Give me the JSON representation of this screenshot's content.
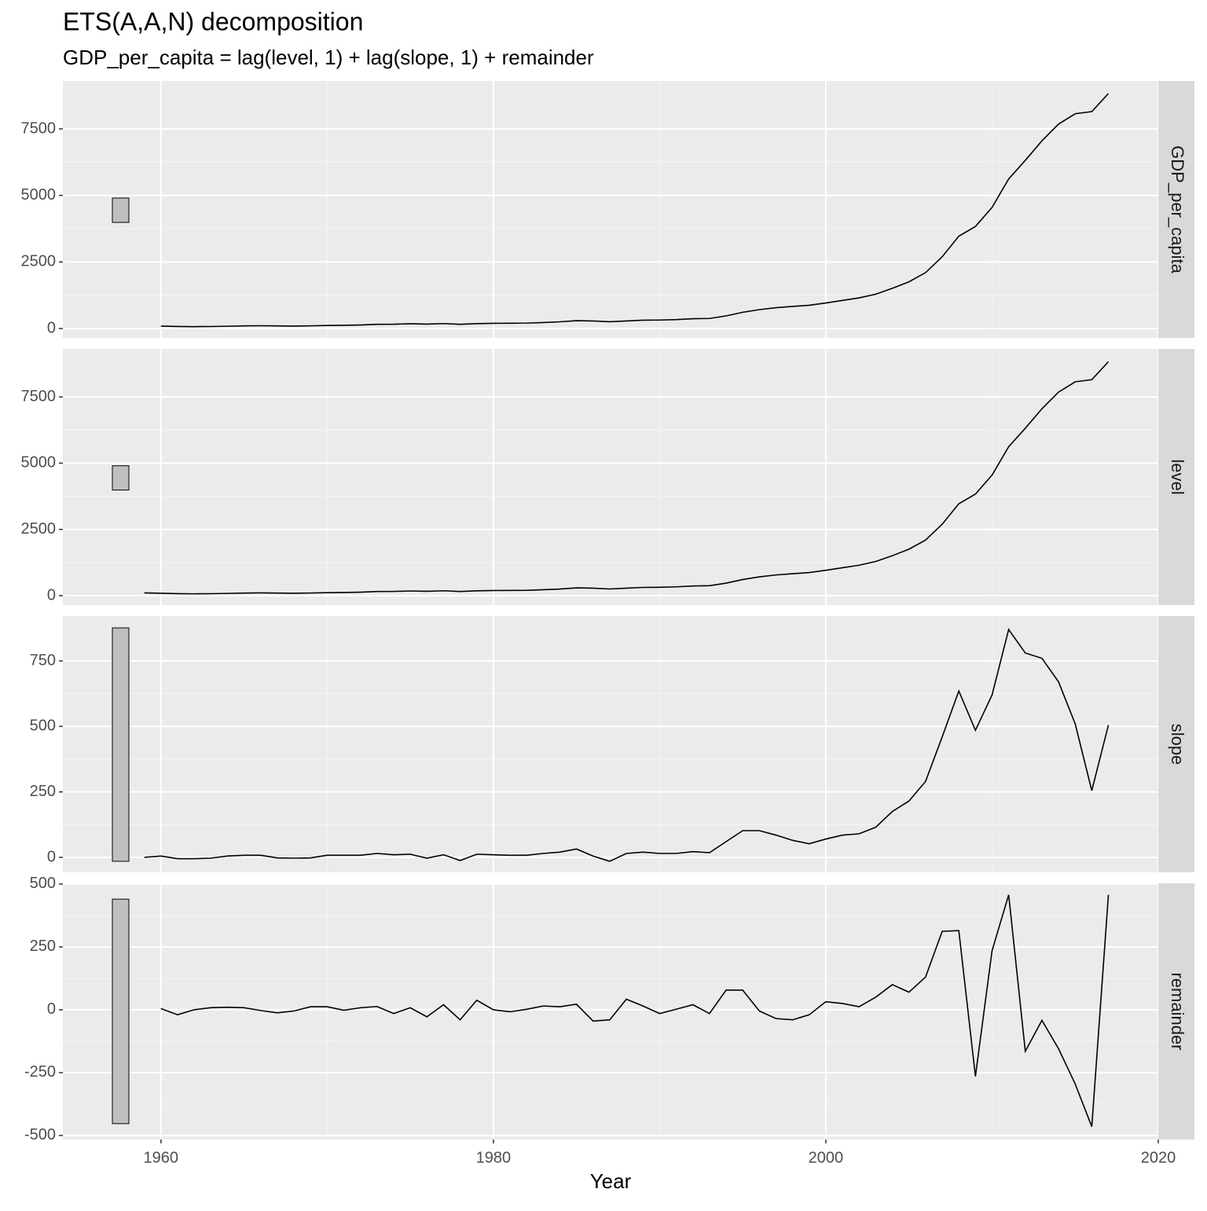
{
  "chart_data": {
    "type": "line",
    "title": "ETS(A,A,N) decomposition",
    "subtitle": "GDP_per_capita = lag(level, 1) + lag(slope, 1) + remainder",
    "x_label": "Year",
    "xlim": [
      1954.1,
      2020.0
    ],
    "xticks": [
      1960,
      1980,
      2000,
      2020
    ],
    "color": "#000000",
    "grid": true,
    "panels": [
      {
        "label": "GDP_per_capita",
        "x": [
          1960,
          1961,
          1962,
          1963,
          1964,
          1965,
          1966,
          1967,
          1968,
          1969,
          1970,
          1971,
          1972,
          1973,
          1974,
          1975,
          1976,
          1977,
          1978,
          1979,
          1980,
          1981,
          1982,
          1983,
          1984,
          1985,
          1986,
          1987,
          1988,
          1989,
          1990,
          1991,
          1992,
          1993,
          1994,
          1995,
          1996,
          1997,
          1998,
          1999,
          2000,
          2001,
          2002,
          2003,
          2004,
          2005,
          2006,
          2007,
          2008,
          2009,
          2010,
          2011,
          2012,
          2013,
          2014,
          2015,
          2016,
          2017
        ],
        "values": [
          90,
          76,
          70,
          74,
          85,
          98,
          104,
          97,
          91,
          100,
          113,
          119,
          132,
          157,
          160,
          178,
          165,
          185,
          156,
          184,
          195,
          197,
          203,
          225,
          251,
          294,
          282,
          252,
          284,
          311,
          318,
          333,
          366,
          377,
          473,
          610,
          709,
          782,
          829,
          873,
          959,
          1053,
          1149,
          1289,
          1509,
          1753,
          2099,
          2694,
          3468,
          3832,
          4550,
          5618,
          6317,
          7051,
          7679,
          8067,
          8148,
          8827
        ],
        "ylim": [
          -354,
          9300
        ],
        "yticks": [
          0,
          2500,
          5000,
          7500
        ],
        "scale_bar": [
          3986,
          4901
        ]
      },
      {
        "label": "level",
        "x": [
          1959,
          1960,
          1961,
          1962,
          1963,
          1964,
          1965,
          1966,
          1967,
          1968,
          1969,
          1970,
          1971,
          1972,
          1973,
          1974,
          1975,
          1976,
          1977,
          1978,
          1979,
          1980,
          1981,
          1982,
          1983,
          1984,
          1985,
          1986,
          1987,
          1988,
          1989,
          1990,
          1991,
          1992,
          1993,
          1994,
          1995,
          1996,
          1997,
          1998,
          1999,
          2000,
          2001,
          2002,
          2003,
          2004,
          2005,
          2006,
          2007,
          2008,
          2009,
          2010,
          2011,
          2012,
          2013,
          2014,
          2015,
          2016,
          2017
        ],
        "values": [
          105,
          90,
          76,
          70,
          74,
          85,
          98,
          104,
          97,
          91,
          100,
          113,
          119,
          132,
          157,
          160,
          178,
          165,
          185,
          156,
          184,
          195,
          197,
          203,
          225,
          251,
          294,
          282,
          252,
          284,
          311,
          318,
          333,
          366,
          377,
          473,
          610,
          709,
          782,
          829,
          873,
          959,
          1053,
          1149,
          1289,
          1509,
          1753,
          2099,
          2694,
          3468,
          3832,
          4550,
          5618,
          6317,
          7051,
          7679,
          8067,
          8148,
          8827
        ],
        "ylim": [
          -356,
          9309
        ],
        "yticks": [
          0,
          2500,
          5000,
          7500
        ],
        "scale_bar": [
          3986,
          4901
        ]
      },
      {
        "label": "slope",
        "x": [
          1959,
          1960,
          1961,
          1962,
          1963,
          1964,
          1965,
          1966,
          1967,
          1968,
          1969,
          1970,
          1971,
          1972,
          1973,
          1974,
          1975,
          1976,
          1977,
          1978,
          1979,
          1980,
          1981,
          1982,
          1983,
          1984,
          1985,
          1986,
          1987,
          1988,
          1989,
          1990,
          1991,
          1992,
          1993,
          1994,
          1995,
          1996,
          1997,
          1998,
          1999,
          2000,
          2001,
          2002,
          2003,
          2004,
          2005,
          2006,
          2007,
          2008,
          2009,
          2010,
          2011,
          2012,
          2013,
          2014,
          2015,
          2016,
          2017
        ],
        "values": [
          0,
          5,
          -5,
          -5,
          -3,
          5,
          8,
          8,
          -2,
          -3,
          -2,
          8,
          8,
          8,
          15,
          10,
          12,
          -3,
          10,
          -12,
          12,
          10,
          8,
          8,
          15,
          20,
          32,
          5,
          -15,
          15,
          20,
          15,
          15,
          22,
          18,
          60,
          102,
          102,
          85,
          65,
          52,
          70,
          85,
          90,
          115,
          175,
          215,
          290,
          460,
          635,
          485,
          620,
          870,
          780,
          760,
          670,
          510,
          255,
          505
        ],
        "ylim": [
          -57,
          921
        ],
        "yticks": [
          0,
          250,
          500,
          750
        ],
        "scale_bar": [
          -15,
          876
        ]
      },
      {
        "label": "remainder",
        "x": [
          1960,
          1961,
          1962,
          1963,
          1964,
          1965,
          1966,
          1967,
          1968,
          1969,
          1970,
          1971,
          1972,
          1973,
          1974,
          1975,
          1976,
          1977,
          1978,
          1979,
          1980,
          1981,
          1982,
          1983,
          1984,
          1985,
          1986,
          1987,
          1988,
          1989,
          1990,
          1991,
          1992,
          1993,
          1994,
          1995,
          1996,
          1997,
          1998,
          1999,
          2000,
          2001,
          2002,
          2003,
          2004,
          2005,
          2006,
          2007,
          2008,
          2009,
          2010,
          2011,
          2012,
          2013,
          2014,
          2015,
          2016,
          2017
        ],
        "values": [
          5,
          -20,
          0,
          8,
          10,
          8,
          -3,
          -12,
          -5,
          12,
          12,
          -2,
          8,
          13,
          -15,
          8,
          -28,
          20,
          -40,
          38,
          0,
          -8,
          2,
          15,
          12,
          22,
          -45,
          -40,
          42,
          15,
          -15,
          2,
          20,
          -15,
          78,
          78,
          -5,
          -35,
          -40,
          -20,
          32,
          25,
          12,
          50,
          100,
          70,
          130,
          312,
          315,
          -265,
          235,
          457,
          -165,
          -42,
          -155,
          -295,
          -465,
          457
        ],
        "ylim": [
          -516,
          503
        ],
        "yticks": [
          -500,
          -250,
          0,
          250,
          500
        ],
        "scale_bar": [
          -453,
          440
        ]
      }
    ]
  }
}
